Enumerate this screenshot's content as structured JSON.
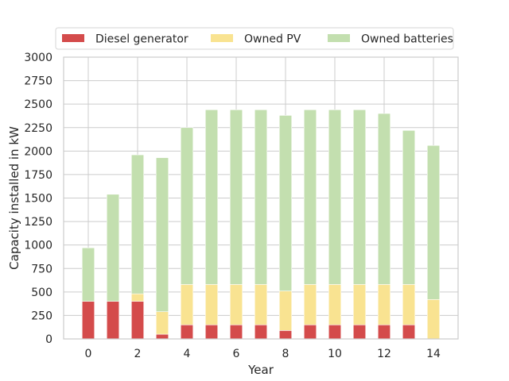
{
  "chart_data": {
    "type": "bar",
    "stacked": true,
    "xlabel": "Year",
    "ylabel": "Capacity installed in kW",
    "ylim": [
      0,
      3000
    ],
    "xlim": [
      -1,
      15
    ],
    "yticks": [
      0,
      250,
      500,
      750,
      1000,
      1250,
      1500,
      1750,
      2000,
      2250,
      2500,
      2750,
      3000
    ],
    "xticks": [
      0,
      2,
      4,
      6,
      8,
      10,
      12,
      14
    ],
    "grid": true,
    "legend_position": "top",
    "x": [
      0,
      1,
      2,
      3,
      4,
      5,
      6,
      7,
      8,
      9,
      10,
      11,
      12,
      13,
      14
    ],
    "series": [
      {
        "name": "Diesel generator",
        "color": "#d44b4b",
        "values": [
          400,
          400,
          400,
          50,
          150,
          150,
          150,
          150,
          90,
          150,
          150,
          150,
          150,
          150,
          0
        ]
      },
      {
        "name": "Owned PV",
        "color": "#f9e391",
        "values": [
          0,
          0,
          80,
          240,
          430,
          430,
          430,
          430,
          420,
          430,
          430,
          430,
          430,
          430,
          420
        ]
      },
      {
        "name": "Owned batteries",
        "color": "#c3dfaf",
        "values": [
          570,
          1140,
          1480,
          1640,
          1670,
          1860,
          1860,
          1860,
          1870,
          1860,
          1860,
          1860,
          1820,
          1640,
          1640
        ]
      }
    ]
  }
}
